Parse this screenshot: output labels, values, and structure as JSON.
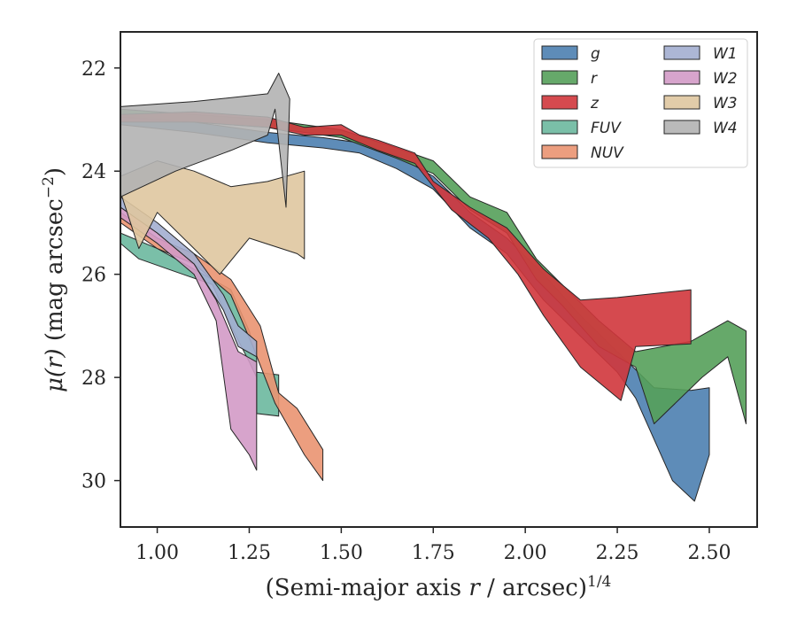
{
  "chart_data": {
    "type": "area",
    "title": "",
    "xlabel": "(Semi-major axis r / arcsec)^1/4",
    "ylabel": "μ(r) (mag arcsec^−2)",
    "xlabel_parts": {
      "main": "(Semi-major axis ",
      "var": "r",
      "rest": " / arcsec)",
      "sup": "1/4"
    },
    "ylabel_parts": {
      "var": "μ(r)",
      "main": " (mag arcsec",
      "sup": "−2",
      "close": ")"
    },
    "xlim": [
      0.9,
      2.63
    ],
    "ylim": [
      30.9,
      21.3
    ],
    "y_inverted": true,
    "xticks": [
      "1.00",
      "1.25",
      "1.50",
      "1.75",
      "2.00",
      "2.25",
      "2.50"
    ],
    "yticks": [
      "22",
      "24",
      "26",
      "28",
      "30"
    ],
    "legend_position": "top-right",
    "legend_columns": 2,
    "series": [
      {
        "name": "g",
        "color": "#4c7fb0",
        "upper": [
          [
            0.9,
            22.9
          ],
          [
            1.1,
            23.05
          ],
          [
            1.3,
            23.25
          ],
          [
            1.45,
            23.35
          ],
          [
            1.55,
            23.45
          ],
          [
            1.65,
            23.7
          ],
          [
            1.75,
            24.1
          ],
          [
            1.85,
            24.8
          ],
          [
            1.95,
            25.3
          ],
          [
            2.05,
            26.0
          ],
          [
            2.15,
            26.8
          ],
          [
            2.25,
            27.5
          ],
          [
            2.35,
            28.2
          ],
          [
            2.45,
            28.25
          ],
          [
            2.5,
            28.2
          ],
          [
            2.5,
            29.5
          ]
        ],
        "lower": [
          [
            0.9,
            23.1
          ],
          [
            1.1,
            23.25
          ],
          [
            1.3,
            23.45
          ],
          [
            1.45,
            23.55
          ],
          [
            1.55,
            23.65
          ],
          [
            1.65,
            23.95
          ],
          [
            1.75,
            24.35
          ],
          [
            1.85,
            25.1
          ],
          [
            1.95,
            25.6
          ],
          [
            2.05,
            26.5
          ],
          [
            2.15,
            27.2
          ],
          [
            2.25,
            27.9
          ],
          [
            2.3,
            28.4
          ],
          [
            2.4,
            30.0
          ],
          [
            2.46,
            30.4
          ]
        ]
      },
      {
        "name": "r",
        "color": "#55a05a",
        "upper": [
          [
            0.9,
            22.8
          ],
          [
            1.1,
            22.9
          ],
          [
            1.3,
            23.0
          ],
          [
            1.5,
            23.2
          ],
          [
            1.65,
            23.55
          ],
          [
            1.75,
            23.8
          ],
          [
            1.85,
            24.5
          ],
          [
            1.95,
            24.8
          ],
          [
            2.03,
            25.7
          ],
          [
            2.1,
            26.2
          ],
          [
            2.2,
            26.9
          ],
          [
            2.3,
            27.5
          ],
          [
            2.45,
            27.3
          ],
          [
            2.55,
            26.9
          ],
          [
            2.6,
            27.1
          ],
          [
            2.6,
            28.9
          ]
        ],
        "lower": [
          [
            0.9,
            22.95
          ],
          [
            1.1,
            23.05
          ],
          [
            1.3,
            23.15
          ],
          [
            1.5,
            23.35
          ],
          [
            1.65,
            23.75
          ],
          [
            1.75,
            24.05
          ],
          [
            1.85,
            24.75
          ],
          [
            1.95,
            25.2
          ],
          [
            2.03,
            26.1
          ],
          [
            2.1,
            26.6
          ],
          [
            2.2,
            27.4
          ],
          [
            2.3,
            27.8
          ],
          [
            2.35,
            28.9
          ],
          [
            2.48,
            28.0
          ],
          [
            2.55,
            27.6
          ]
        ]
      },
      {
        "name": "z",
        "color": "#d0363c",
        "upper": [
          [
            0.9,
            22.9
          ],
          [
            1.1,
            22.85
          ],
          [
            1.3,
            22.95
          ],
          [
            1.4,
            23.15
          ],
          [
            1.5,
            23.1
          ],
          [
            1.55,
            23.3
          ],
          [
            1.6,
            23.4
          ],
          [
            1.7,
            23.65
          ],
          [
            1.75,
            24.2
          ],
          [
            1.85,
            24.7
          ],
          [
            1.95,
            25.1
          ],
          [
            2.05,
            25.9
          ],
          [
            2.15,
            26.5
          ],
          [
            2.25,
            26.45
          ],
          [
            2.45,
            26.3
          ],
          [
            2.45,
            27.35
          ]
        ],
        "lower": [
          [
            0.9,
            23.05
          ],
          [
            1.1,
            23.05
          ],
          [
            1.3,
            23.15
          ],
          [
            1.4,
            23.3
          ],
          [
            1.5,
            23.3
          ],
          [
            1.55,
            23.45
          ],
          [
            1.6,
            23.6
          ],
          [
            1.7,
            23.85
          ],
          [
            1.8,
            24.75
          ],
          [
            1.9,
            25.3
          ],
          [
            1.98,
            26.0
          ],
          [
            2.05,
            26.8
          ],
          [
            2.15,
            27.8
          ],
          [
            2.26,
            28.45
          ],
          [
            2.3,
            27.4
          ]
        ]
      },
      {
        "name": "FUV",
        "color": "#6bb89f",
        "upper": [
          [
            0.9,
            25.2
          ],
          [
            1.0,
            25.5
          ],
          [
            1.1,
            25.9
          ],
          [
            1.2,
            26.3
          ],
          [
            1.25,
            27.1
          ],
          [
            1.27,
            27.6
          ]
        ],
        "lower": [
          [
            0.9,
            25.4
          ],
          [
            0.95,
            25.7
          ],
          [
            1.05,
            25.95
          ],
          [
            1.15,
            26.2
          ],
          [
            1.2,
            27.0
          ],
          [
            1.25,
            27.7
          ],
          [
            1.27,
            28.0
          ]
        ],
        "fragment": [
          [
            1.27,
            27.9
          ],
          [
            1.33,
            27.95
          ],
          [
            1.33,
            28.75
          ],
          [
            1.27,
            28.7
          ]
        ]
      },
      {
        "name": "NUV",
        "color": "#ea9471",
        "upper": [
          [
            0.9,
            24.8
          ],
          [
            1.0,
            25.3
          ],
          [
            1.1,
            25.6
          ],
          [
            1.2,
            26.1
          ],
          [
            1.28,
            27.0
          ],
          [
            1.33,
            28.3
          ],
          [
            1.38,
            28.6
          ],
          [
            1.45,
            29.4
          ]
        ],
        "lower": [
          [
            0.9,
            25.0
          ],
          [
            1.0,
            25.5
          ],
          [
            1.1,
            25.8
          ],
          [
            1.2,
            26.4
          ],
          [
            1.26,
            27.4
          ],
          [
            1.32,
            28.5
          ],
          [
            1.4,
            29.5
          ],
          [
            1.45,
            30.0
          ]
        ]
      },
      {
        "name": "W1",
        "color": "#a3aed0",
        "upper": [
          [
            0.9,
            24.5
          ],
          [
            1.0,
            25.0
          ],
          [
            1.1,
            25.6
          ],
          [
            1.18,
            26.4
          ],
          [
            1.22,
            27.0
          ],
          [
            1.27,
            27.3
          ]
        ],
        "lower": [
          [
            0.9,
            24.7
          ],
          [
            1.0,
            25.2
          ],
          [
            1.1,
            25.8
          ],
          [
            1.18,
            26.7
          ],
          [
            1.22,
            27.4
          ],
          [
            1.27,
            27.6
          ]
        ]
      },
      {
        "name": "W2",
        "color": "#d39ac7",
        "upper": [
          [
            0.9,
            24.7
          ],
          [
            1.0,
            25.2
          ],
          [
            1.1,
            25.8
          ],
          [
            1.16,
            26.5
          ],
          [
            1.22,
            27.5
          ],
          [
            1.27,
            27.7
          ],
          [
            1.27,
            29.8
          ]
        ],
        "lower": [
          [
            0.9,
            24.9
          ],
          [
            1.0,
            25.4
          ],
          [
            1.1,
            26.0
          ],
          [
            1.16,
            26.9
          ],
          [
            1.2,
            29.0
          ],
          [
            1.25,
            29.5
          ]
        ]
      },
      {
        "name": "W3",
        "color": "#dfc6a0",
        "upper": [
          [
            0.9,
            24.1
          ],
          [
            1.0,
            23.8
          ],
          [
            1.1,
            24.0
          ],
          [
            1.2,
            24.3
          ],
          [
            1.3,
            24.2
          ],
          [
            1.4,
            24.0
          ],
          [
            1.4,
            25.7
          ]
        ],
        "lower": [
          [
            0.9,
            24.4
          ],
          [
            0.95,
            25.5
          ],
          [
            1.0,
            24.8
          ],
          [
            1.1,
            25.5
          ],
          [
            1.17,
            26.0
          ],
          [
            1.25,
            25.3
          ],
          [
            1.38,
            25.6
          ]
        ]
      },
      {
        "name": "W4",
        "color": "#b3b3b3",
        "upper": [
          [
            0.9,
            22.75
          ],
          [
            1.1,
            22.65
          ],
          [
            1.3,
            22.5
          ],
          [
            1.33,
            22.1
          ],
          [
            1.36,
            22.6
          ],
          [
            1.35,
            24.7
          ]
        ],
        "lower": [
          [
            0.9,
            24.5
          ],
          [
            1.05,
            24.0
          ],
          [
            1.2,
            23.6
          ],
          [
            1.3,
            23.3
          ],
          [
            1.32,
            22.8
          ]
        ]
      }
    ]
  }
}
